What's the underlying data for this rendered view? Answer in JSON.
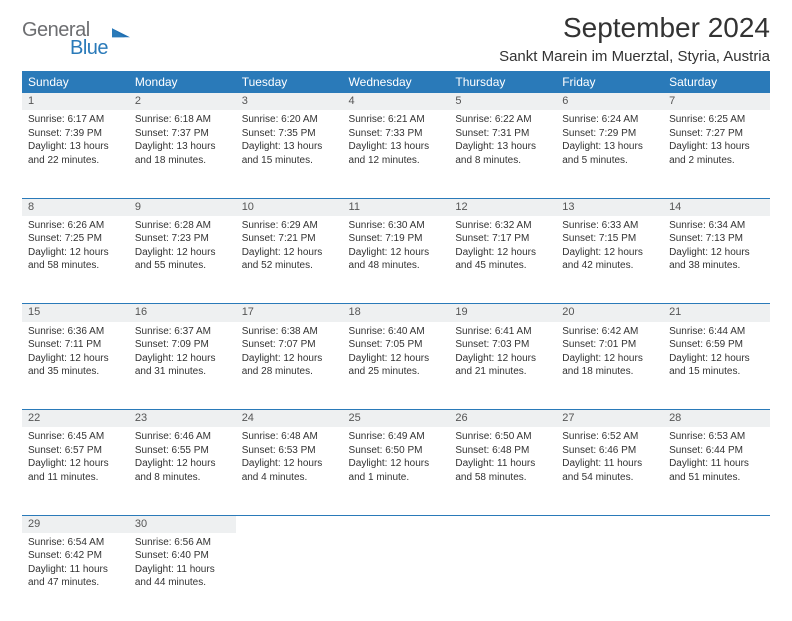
{
  "brand": {
    "word1": "General",
    "word2": "Blue"
  },
  "title": "September 2024",
  "location": "Sankt Marein im Muerztal, Styria, Austria",
  "colors": {
    "header_bg": "#2a7ab9",
    "header_text": "#ffffff",
    "daynum_bg": "#eef0f1",
    "divider": "#2a7ab9",
    "body_text": "#333333",
    "logo_gray": "#6d6e71",
    "logo_blue": "#2a7ab9",
    "page_bg": "#ffffff"
  },
  "columns": [
    "Sunday",
    "Monday",
    "Tuesday",
    "Wednesday",
    "Thursday",
    "Friday",
    "Saturday"
  ],
  "weeks": [
    [
      {
        "n": "1",
        "sr": "Sunrise: 6:17 AM",
        "ss": "Sunset: 7:39 PM",
        "d1": "Daylight: 13 hours",
        "d2": "and 22 minutes."
      },
      {
        "n": "2",
        "sr": "Sunrise: 6:18 AM",
        "ss": "Sunset: 7:37 PM",
        "d1": "Daylight: 13 hours",
        "d2": "and 18 minutes."
      },
      {
        "n": "3",
        "sr": "Sunrise: 6:20 AM",
        "ss": "Sunset: 7:35 PM",
        "d1": "Daylight: 13 hours",
        "d2": "and 15 minutes."
      },
      {
        "n": "4",
        "sr": "Sunrise: 6:21 AM",
        "ss": "Sunset: 7:33 PM",
        "d1": "Daylight: 13 hours",
        "d2": "and 12 minutes."
      },
      {
        "n": "5",
        "sr": "Sunrise: 6:22 AM",
        "ss": "Sunset: 7:31 PM",
        "d1": "Daylight: 13 hours",
        "d2": "and 8 minutes."
      },
      {
        "n": "6",
        "sr": "Sunrise: 6:24 AM",
        "ss": "Sunset: 7:29 PM",
        "d1": "Daylight: 13 hours",
        "d2": "and 5 minutes."
      },
      {
        "n": "7",
        "sr": "Sunrise: 6:25 AM",
        "ss": "Sunset: 7:27 PM",
        "d1": "Daylight: 13 hours",
        "d2": "and 2 minutes."
      }
    ],
    [
      {
        "n": "8",
        "sr": "Sunrise: 6:26 AM",
        "ss": "Sunset: 7:25 PM",
        "d1": "Daylight: 12 hours",
        "d2": "and 58 minutes."
      },
      {
        "n": "9",
        "sr": "Sunrise: 6:28 AM",
        "ss": "Sunset: 7:23 PM",
        "d1": "Daylight: 12 hours",
        "d2": "and 55 minutes."
      },
      {
        "n": "10",
        "sr": "Sunrise: 6:29 AM",
        "ss": "Sunset: 7:21 PM",
        "d1": "Daylight: 12 hours",
        "d2": "and 52 minutes."
      },
      {
        "n": "11",
        "sr": "Sunrise: 6:30 AM",
        "ss": "Sunset: 7:19 PM",
        "d1": "Daylight: 12 hours",
        "d2": "and 48 minutes."
      },
      {
        "n": "12",
        "sr": "Sunrise: 6:32 AM",
        "ss": "Sunset: 7:17 PM",
        "d1": "Daylight: 12 hours",
        "d2": "and 45 minutes."
      },
      {
        "n": "13",
        "sr": "Sunrise: 6:33 AM",
        "ss": "Sunset: 7:15 PM",
        "d1": "Daylight: 12 hours",
        "d2": "and 42 minutes."
      },
      {
        "n": "14",
        "sr": "Sunrise: 6:34 AM",
        "ss": "Sunset: 7:13 PM",
        "d1": "Daylight: 12 hours",
        "d2": "and 38 minutes."
      }
    ],
    [
      {
        "n": "15",
        "sr": "Sunrise: 6:36 AM",
        "ss": "Sunset: 7:11 PM",
        "d1": "Daylight: 12 hours",
        "d2": "and 35 minutes."
      },
      {
        "n": "16",
        "sr": "Sunrise: 6:37 AM",
        "ss": "Sunset: 7:09 PM",
        "d1": "Daylight: 12 hours",
        "d2": "and 31 minutes."
      },
      {
        "n": "17",
        "sr": "Sunrise: 6:38 AM",
        "ss": "Sunset: 7:07 PM",
        "d1": "Daylight: 12 hours",
        "d2": "and 28 minutes."
      },
      {
        "n": "18",
        "sr": "Sunrise: 6:40 AM",
        "ss": "Sunset: 7:05 PM",
        "d1": "Daylight: 12 hours",
        "d2": "and 25 minutes."
      },
      {
        "n": "19",
        "sr": "Sunrise: 6:41 AM",
        "ss": "Sunset: 7:03 PM",
        "d1": "Daylight: 12 hours",
        "d2": "and 21 minutes."
      },
      {
        "n": "20",
        "sr": "Sunrise: 6:42 AM",
        "ss": "Sunset: 7:01 PM",
        "d1": "Daylight: 12 hours",
        "d2": "and 18 minutes."
      },
      {
        "n": "21",
        "sr": "Sunrise: 6:44 AM",
        "ss": "Sunset: 6:59 PM",
        "d1": "Daylight: 12 hours",
        "d2": "and 15 minutes."
      }
    ],
    [
      {
        "n": "22",
        "sr": "Sunrise: 6:45 AM",
        "ss": "Sunset: 6:57 PM",
        "d1": "Daylight: 12 hours",
        "d2": "and 11 minutes."
      },
      {
        "n": "23",
        "sr": "Sunrise: 6:46 AM",
        "ss": "Sunset: 6:55 PM",
        "d1": "Daylight: 12 hours",
        "d2": "and 8 minutes."
      },
      {
        "n": "24",
        "sr": "Sunrise: 6:48 AM",
        "ss": "Sunset: 6:53 PM",
        "d1": "Daylight: 12 hours",
        "d2": "and 4 minutes."
      },
      {
        "n": "25",
        "sr": "Sunrise: 6:49 AM",
        "ss": "Sunset: 6:50 PM",
        "d1": "Daylight: 12 hours",
        "d2": "and 1 minute."
      },
      {
        "n": "26",
        "sr": "Sunrise: 6:50 AM",
        "ss": "Sunset: 6:48 PM",
        "d1": "Daylight: 11 hours",
        "d2": "and 58 minutes."
      },
      {
        "n": "27",
        "sr": "Sunrise: 6:52 AM",
        "ss": "Sunset: 6:46 PM",
        "d1": "Daylight: 11 hours",
        "d2": "and 54 minutes."
      },
      {
        "n": "28",
        "sr": "Sunrise: 6:53 AM",
        "ss": "Sunset: 6:44 PM",
        "d1": "Daylight: 11 hours",
        "d2": "and 51 minutes."
      }
    ],
    [
      {
        "n": "29",
        "sr": "Sunrise: 6:54 AM",
        "ss": "Sunset: 6:42 PM",
        "d1": "Daylight: 11 hours",
        "d2": "and 47 minutes."
      },
      {
        "n": "30",
        "sr": "Sunrise: 6:56 AM",
        "ss": "Sunset: 6:40 PM",
        "d1": "Daylight: 11 hours",
        "d2": "and 44 minutes."
      },
      null,
      null,
      null,
      null,
      null
    ]
  ]
}
